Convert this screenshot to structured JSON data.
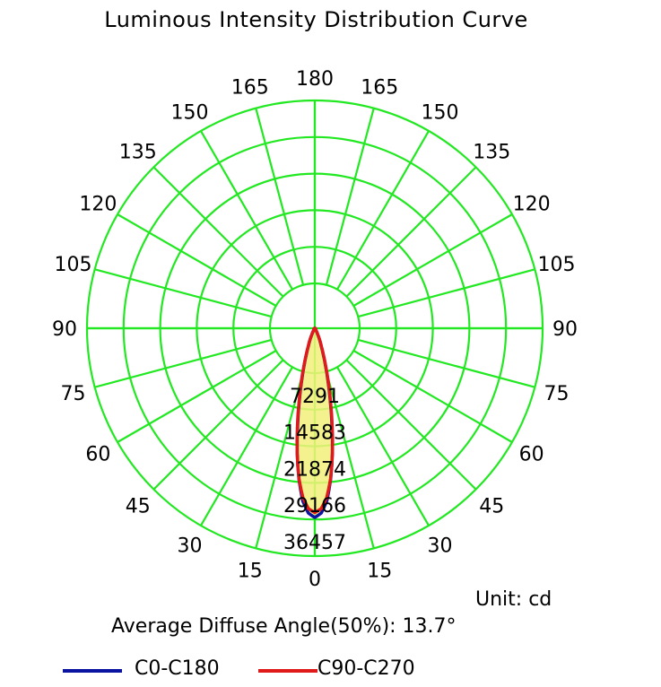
{
  "chart_data": {
    "type": "polar",
    "title": "Luminous Intensity Distribution Curve",
    "angle_labels_left": [
      "180",
      "165",
      "150",
      "135",
      "120",
      "105",
      "90",
      "75",
      "60",
      "45",
      "30",
      "15",
      "0"
    ],
    "angle_labels_right": [
      "165",
      "150",
      "135",
      "120",
      "105",
      "90",
      "75",
      "60",
      "45",
      "30",
      "15"
    ],
    "ring_labels": [
      "7291",
      "14583",
      "21874",
      "29166",
      "36457"
    ],
    "rlim": [
      0,
      36457
    ],
    "unit": "Unit: cd",
    "diffuse_angle_text": "Average Diffuse Angle(50%): 13.7°",
    "grid": true,
    "grid_color": "#22e822",
    "legend_position": "bottom",
    "series": [
      {
        "name": "C0-C180",
        "color": "#0a14a0",
        "angles": [
          0,
          2,
          4,
          6,
          8,
          10,
          12,
          14,
          16,
          18,
          20,
          25,
          30,
          90
        ],
        "values": [
          30300,
          29600,
          27700,
          24300,
          20200,
          15800,
          11900,
          8700,
          6200,
          4300,
          2900,
          1100,
          300,
          0
        ]
      },
      {
        "name": "C90-C270",
        "color": "#e01a1a",
        "angles": [
          0,
          2,
          4,
          6,
          8,
          10,
          12,
          14,
          16,
          18,
          20,
          25,
          30,
          90
        ],
        "values": [
          29500,
          28900,
          27200,
          24200,
          20300,
          16100,
          12200,
          9000,
          6400,
          4500,
          3100,
          1200,
          350,
          0
        ]
      }
    ]
  }
}
